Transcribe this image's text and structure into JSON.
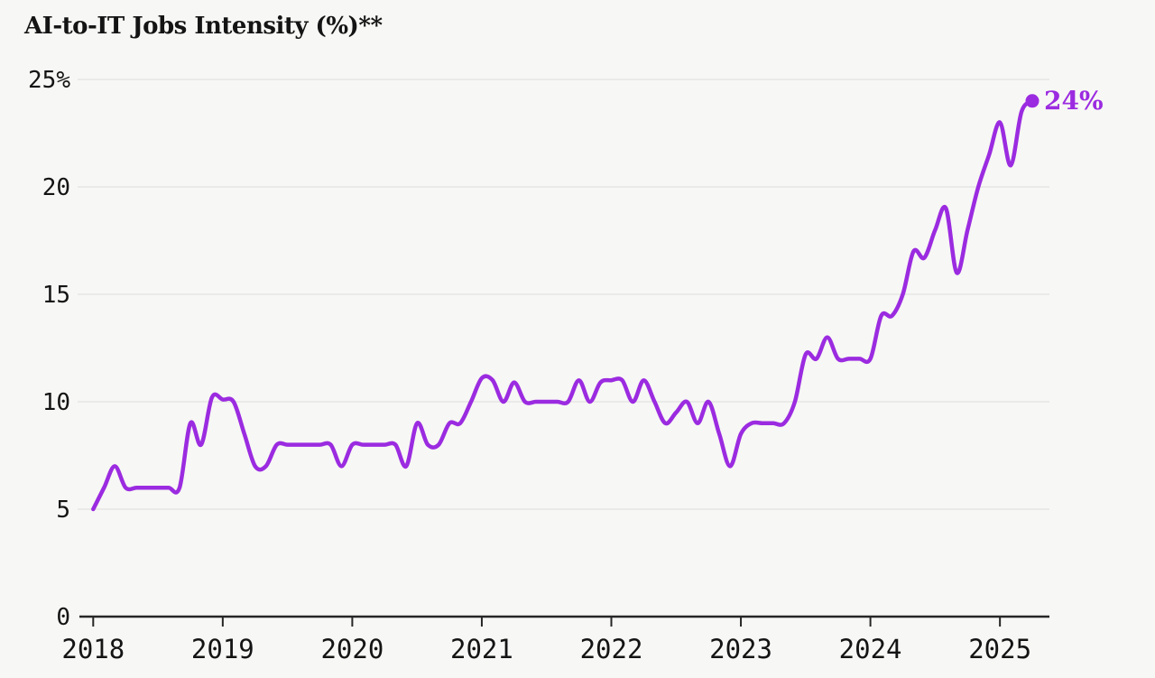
{
  "page": {
    "background": "#f7f7f5"
  },
  "header": {
    "title": "AI-to-IT Jobs Intensity (%)**"
  },
  "chart_data": {
    "type": "line",
    "title": "AI-to-IT Jobs Intensity (%)**",
    "x_frequency": "monthly",
    "x_start": "2018-01",
    "x_end": "2025-04",
    "xlabel": "",
    "ylabel": "",
    "ylim": [
      0,
      25
    ],
    "grid": "horizontal-only",
    "legend": "none",
    "end_point_label": "24%",
    "end_point_value": 24,
    "xticks": [
      "2018",
      "2019",
      "2020",
      "2021",
      "2022",
      "2023",
      "2024",
      "2025"
    ],
    "yticks": [
      {
        "label": "25%",
        "value": 25
      },
      {
        "label": "20",
        "value": 20
      },
      {
        "label": "15",
        "value": 15
      },
      {
        "label": "10",
        "value": 10
      },
      {
        "label": "5",
        "value": 5
      },
      {
        "label": "0",
        "value": 0
      }
    ],
    "series": [
      {
        "name": "AI-to-IT jobs intensity (%)",
        "color": "#9b2be0",
        "values": [
          5,
          6,
          7,
          6,
          6,
          6,
          6,
          6,
          6,
          9,
          8,
          10.2,
          10.1,
          10,
          8.5,
          7,
          7,
          8,
          8,
          8,
          8,
          8,
          8,
          7,
          8,
          8,
          8,
          8,
          8,
          7,
          9,
          8,
          8,
          9,
          9,
          10,
          11.1,
          11,
          10,
          10.9,
          10,
          10,
          10,
          10,
          10,
          11,
          10,
          10.9,
          11,
          11,
          10,
          11,
          10,
          9,
          9.5,
          10,
          9,
          10,
          8.5,
          7,
          8.5,
          9,
          9,
          9,
          9,
          10,
          12.2,
          12,
          13,
          12,
          12,
          12,
          12,
          14,
          14,
          15,
          17,
          16.7,
          18,
          19,
          16,
          18,
          20,
          21.5,
          23,
          21,
          23.5,
          24
        ]
      }
    ],
    "colors": {
      "line": "#9b2be0",
      "marker": "#9b2be0",
      "grid": "#e6e6e3",
      "axis": "#262626",
      "text": "#141414",
      "background": "#f7f7f5"
    }
  }
}
